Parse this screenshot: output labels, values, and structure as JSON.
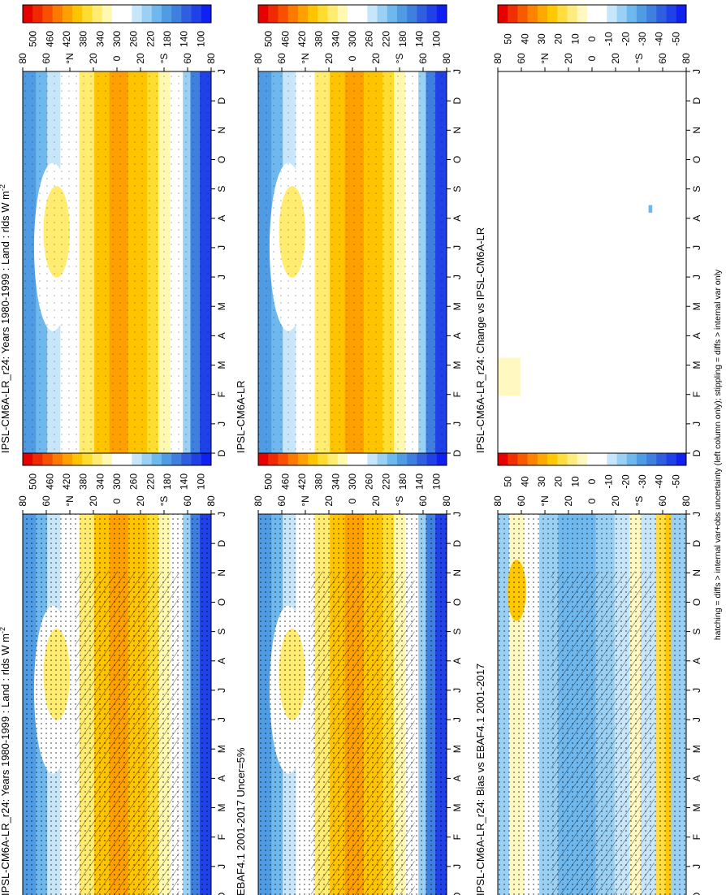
{
  "caption": "hatching = diffs > internal var+obs uncertainty (left column only); stippling = diffs > internal var only",
  "chart_data": [
    {
      "type": "heatmap",
      "id": "model-left",
      "title": "IPSL-CM6A-LR_r24: Years 1980-1999 : Land : rlds W m",
      "title_sup": "-2",
      "x": [
        "J",
        "F",
        "M",
        "A",
        "M",
        "J",
        "J",
        "A",
        "S",
        "O",
        "N",
        "D",
        "J"
      ],
      "x_start": "D",
      "y": [
        "80",
        "60",
        "°N",
        "20",
        "0",
        "20",
        "°S",
        "60",
        "80"
      ],
      "colorbar": {
        "labels": [
          "500",
          "460",
          "420",
          "380",
          "340",
          "300",
          "260",
          "220",
          "180",
          "140",
          "100"
        ]
      },
      "field": "absolute",
      "hatching": true,
      "stippling": true
    },
    {
      "type": "heatmap",
      "id": "model-right",
      "title": "IPSL-CM6A-LR_r24: Years 1980-1999 : Land : rlds W m",
      "title_sup": "-2",
      "x": [
        "J",
        "F",
        "M",
        "A",
        "M",
        "J",
        "J",
        "A",
        "S",
        "O",
        "N",
        "D",
        "J"
      ],
      "x_start": "D",
      "y": [
        "80",
        "60",
        "°N",
        "20",
        "0",
        "20",
        "°S",
        "60",
        "80"
      ],
      "colorbar": {
        "labels": [
          "500",
          "460",
          "420",
          "380",
          "340",
          "300",
          "260",
          "220",
          "180",
          "140",
          "100"
        ]
      },
      "field": "absolute",
      "hatching": false,
      "stippling": true
    },
    {
      "type": "heatmap",
      "id": "obs-left",
      "title": "EBAF4.1 2001-2017 Uncer=5%",
      "x": [
        "J",
        "F",
        "M",
        "A",
        "M",
        "J",
        "J",
        "A",
        "S",
        "O",
        "N",
        "D",
        "J"
      ],
      "x_start": "D",
      "y": [
        "80",
        "60",
        "°N",
        "20",
        "0",
        "20",
        "°S",
        "60",
        "80"
      ],
      "colorbar": {
        "labels": [
          "500",
          "460",
          "420",
          "380",
          "340",
          "300",
          "260",
          "220",
          "180",
          "140",
          "100"
        ]
      },
      "field": "absolute",
      "hatching": true,
      "stippling": true
    },
    {
      "type": "heatmap",
      "id": "ref-right",
      "title": "IPSL-CM6A-LR",
      "x": [
        "J",
        "F",
        "M",
        "A",
        "M",
        "J",
        "J",
        "A",
        "S",
        "O",
        "N",
        "D",
        "J"
      ],
      "x_start": "D",
      "y": [
        "80",
        "60",
        "°N",
        "20",
        "0",
        "20",
        "°S",
        "60",
        "80"
      ],
      "colorbar": {
        "labels": [
          "500",
          "460",
          "420",
          "380",
          "340",
          "300",
          "260",
          "220",
          "180",
          "140",
          "100"
        ]
      },
      "field": "absolute",
      "hatching": false,
      "stippling": true
    },
    {
      "type": "heatmap",
      "id": "bias-left",
      "title": "IPSL-CM6A-LR_r24: Bias vs EBAF4.1 2001-2017",
      "x": [
        "J",
        "F",
        "M",
        "A",
        "M",
        "J",
        "J",
        "A",
        "S",
        "O",
        "N",
        "D",
        "J"
      ],
      "x_start": "D",
      "y": [
        "80",
        "60",
        "°N",
        "20",
        "0",
        "20",
        "°S",
        "60",
        "80"
      ],
      "colorbar": {
        "labels": [
          "50",
          "40",
          "30",
          "20",
          "10",
          "0",
          "-10",
          "-20",
          "-30",
          "-40",
          "-50"
        ]
      },
      "field": "bias",
      "hatching": true,
      "stippling": true
    },
    {
      "type": "heatmap",
      "id": "change-right",
      "title": "IPSL-CM6A-LR_r24: Change vs IPSL-CM6A-LR",
      "x": [
        "J",
        "F",
        "M",
        "A",
        "M",
        "J",
        "J",
        "A",
        "S",
        "O",
        "N",
        "D",
        "J"
      ],
      "x_start": "D",
      "y": [
        "80",
        "60",
        "°N",
        "20",
        "0",
        "20",
        "°S",
        "60",
        "80"
      ],
      "colorbar": {
        "labels": [
          "50",
          "40",
          "30",
          "20",
          "10",
          "0",
          "-10",
          "-20",
          "-30",
          "-40",
          "-50"
        ]
      },
      "field": "change",
      "hatching": false,
      "stippling": true
    }
  ],
  "colors": {
    "absolute_scale": [
      "#e60000",
      "#f02a00",
      "#f85000",
      "#fc7a00",
      "#fea000",
      "#ffc400",
      "#ffdc30",
      "#ffec70",
      "#fff8b0",
      "#ffffff",
      "#ffffff",
      "#c8e6fa",
      "#9bd0f5",
      "#6eb8ee",
      "#4f9be4",
      "#3f7fe0",
      "#2f5fe0",
      "#2040e8",
      "#1020f0"
    ],
    "diff_scale": [
      "#e60000",
      "#f03000",
      "#f85a00",
      "#fc8200",
      "#fea800",
      "#ffc800",
      "#ffdc40",
      "#ffec80",
      "#fff8c0",
      "#ffffff",
      "#ffffff",
      "#c8e6fa",
      "#9bd0f5",
      "#6eb8ee",
      "#4f9be4",
      "#3f7fe0",
      "#2f5fe0",
      "#2040e8",
      "#1020f0"
    ]
  }
}
